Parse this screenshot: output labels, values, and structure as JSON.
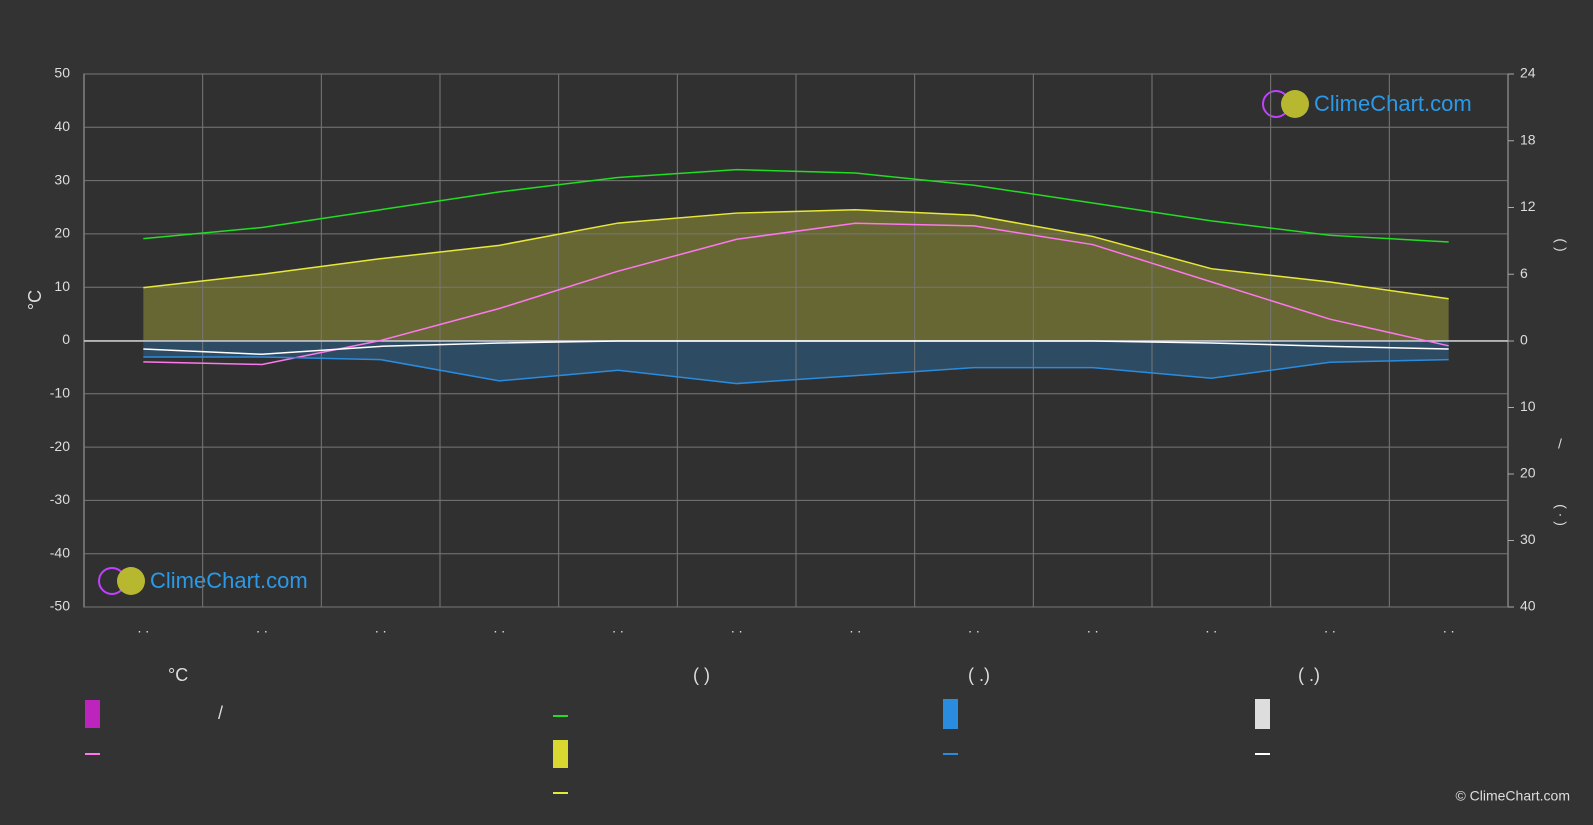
{
  "chart_data": {
    "type": "line",
    "y_label": "°C",
    "categories": [
      ". .",
      ". .",
      ". .",
      ". .",
      ". .",
      ". .",
      ". .",
      ". .",
      ". .",
      ". .",
      ". .",
      ". ."
    ],
    "ylim": [
      -50,
      50
    ],
    "yticks": [
      -50,
      -40,
      -30,
      -20,
      -10,
      0,
      10,
      20,
      30,
      40,
      50
    ],
    "y2lim": [
      0,
      24
    ],
    "y2ticks": [
      0,
      6,
      12,
      18,
      24
    ],
    "y3lim": [
      0,
      40
    ],
    "y3ticks": [
      10,
      20,
      30,
      40
    ],
    "y2_labels": [
      "(   )",
      "/",
      "(  ·  )"
    ],
    "grid": true,
    "series": [
      {
        "color": "#22dd22",
        "axis": "y2",
        "values": [
          9.2,
          10.2,
          11.8,
          13.4,
          14.7,
          15.4,
          15.1,
          14.0,
          12.4,
          10.8,
          9.5,
          8.9
        ]
      },
      {
        "color": "#e8e83a",
        "axis": "y2",
        "area": true,
        "values": [
          4.8,
          6.0,
          7.4,
          8.6,
          10.6,
          11.5,
          11.8,
          11.3,
          9.4,
          6.5,
          5.3,
          3.8
        ]
      },
      {
        "color": "#ff77ee",
        "axis": "y",
        "values": [
          -4,
          -4.5,
          0,
          6,
          13,
          19,
          22,
          21.5,
          18,
          11,
          4,
          -1
        ]
      },
      {
        "color": "#2a8cdf",
        "axis": "y3",
        "area": true,
        "values": [
          2.4,
          2.4,
          2.8,
          6,
          4.4,
          6.4,
          5.2,
          4,
          4,
          5.6,
          3.2,
          2.8
        ]
      },
      {
        "color": "#ffffff",
        "axis": "y3",
        "values": [
          1.2,
          2,
          0.8,
          0.3,
          0,
          0,
          0,
          0,
          0,
          0.3,
          0.8,
          1.2
        ]
      }
    ]
  },
  "legend": {
    "headers": [
      "°C",
      "(          )",
      "(   .)",
      "(   .)"
    ],
    "items": [
      "/"
    ]
  },
  "branding": [
    "ClimeChart.com",
    "ClimeChart.com"
  ],
  "copyright": "© ClimeChart.com"
}
